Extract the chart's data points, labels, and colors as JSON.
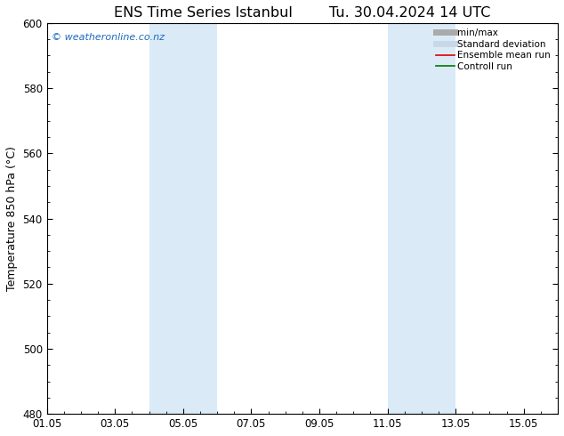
{
  "title_left": "ENS Time Series Istanbul",
  "title_right": "Tu. 30.04.2024 14 UTC",
  "ylabel": "Temperature 850 hPa (°C)",
  "ylim": [
    480,
    600
  ],
  "yticks": [
    480,
    500,
    520,
    540,
    560,
    580,
    600
  ],
  "xtick_labels": [
    "01.05",
    "03.05",
    "05.05",
    "07.05",
    "09.05",
    "11.05",
    "13.05",
    "15.05"
  ],
  "xtick_positions": [
    0,
    2,
    4,
    6,
    8,
    10,
    12,
    14
  ],
  "xlim": [
    0,
    15
  ],
  "shaded_bands": [
    {
      "x_start": 3,
      "x_end": 5,
      "color": "#daeaf7"
    },
    {
      "x_start": 10,
      "x_end": 12,
      "color": "#daeaf7"
    }
  ],
  "watermark_text": "© weatheronline.co.nz",
  "watermark_color": "#1a6bbf",
  "legend_entries": [
    {
      "label": "min/max",
      "color": "#aaaaaa",
      "linewidth": 5,
      "linestyle": "-"
    },
    {
      "label": "Standard deviation",
      "color": "#c8d8e8",
      "linewidth": 5,
      "linestyle": "-"
    },
    {
      "label": "Ensemble mean run",
      "color": "#dd0000",
      "linewidth": 1.2,
      "linestyle": "-"
    },
    {
      "label": "Controll run",
      "color": "#007700",
      "linewidth": 1.2,
      "linestyle": "-"
    }
  ],
  "background_color": "#ffffff",
  "plot_bg_color": "#ffffff",
  "title_fontsize": 11.5,
  "axis_label_fontsize": 9,
  "tick_fontsize": 8.5,
  "watermark_fontsize": 8
}
